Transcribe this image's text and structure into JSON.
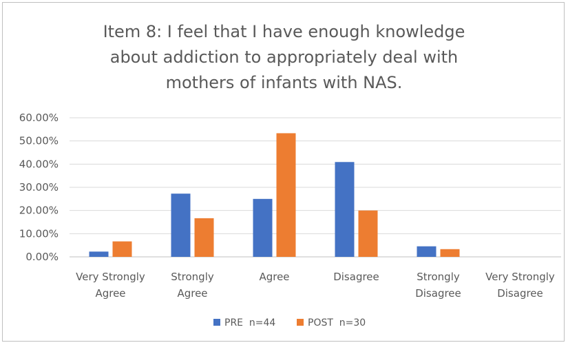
{
  "chart_data": {
    "type": "bar",
    "title": [
      "Item 8: I feel that I have enough knowledge",
      "about addiction to appropriately deal with",
      "mothers of infants with NAS."
    ],
    "categories": [
      [
        "Very Strongly",
        "Agree"
      ],
      [
        "Strongly",
        "Agree"
      ],
      [
        "Agree"
      ],
      [
        "Disagree"
      ],
      [
        "Strongly",
        "Disagree"
      ],
      [
        "Very Strongly",
        "Disagree"
      ]
    ],
    "series": [
      {
        "name": "PRE  n=44",
        "color": "#4472c4",
        "values": [
          2.27,
          27.27,
          25.0,
          40.91,
          4.55,
          0.0
        ]
      },
      {
        "name": "POST  n=30",
        "color": "#ed7d31",
        "values": [
          6.67,
          16.67,
          53.33,
          20.0,
          3.33,
          0.0
        ]
      }
    ],
    "yticks": [
      "0.00%",
      "10.00%",
      "20.00%",
      "30.00%",
      "40.00%",
      "50.00%",
      "60.00%"
    ],
    "ylim": [
      0,
      60
    ],
    "grid": true,
    "legend_position": "bottom"
  }
}
